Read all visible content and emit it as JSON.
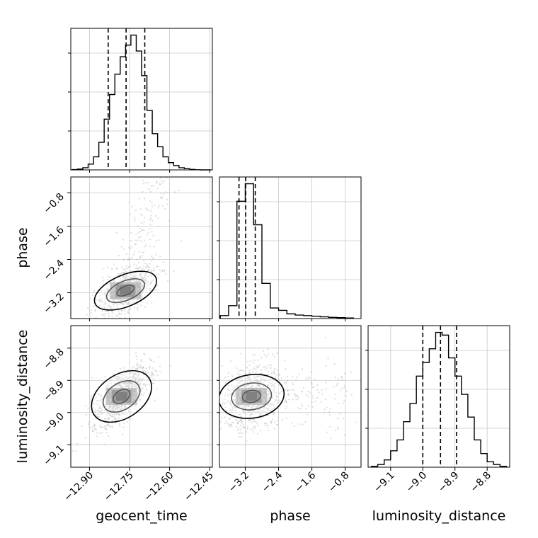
{
  "chart_data": {
    "type": "corner",
    "parameters": [
      "geocent_time",
      "phase",
      "luminosity_distance"
    ],
    "axes": {
      "geocent_time": {
        "range": [
          -12.97,
          -12.44
        ],
        "ticks": [
          -12.9,
          -12.75,
          -12.6,
          -12.45
        ],
        "tick_labels": [
          "−12.90",
          "−12.75",
          "−12.60",
          "−12.45"
        ]
      },
      "phase": {
        "range": [
          -3.82,
          -0.42
        ],
        "ticks": [
          -3.2,
          -2.4,
          -1.6,
          -0.8
        ],
        "tick_labels": [
          "−3.2",
          "−2.4",
          "−1.6",
          "−0.8"
        ]
      },
      "luminosity_distance": {
        "range": [
          -9.17,
          -8.73
        ],
        "ticks": [
          -9.1,
          -9.0,
          -8.9,
          -8.8
        ],
        "tick_labels": [
          "−9.1",
          "−9.0",
          "−8.9",
          "−8.8"
        ]
      }
    },
    "histograms": [
      {
        "param": "geocent_time",
        "bin_edges": [
          -12.965,
          -12.945,
          -12.925,
          -12.905,
          -12.885,
          -12.865,
          -12.845,
          -12.825,
          -12.805,
          -12.785,
          -12.765,
          -12.745,
          -12.725,
          -12.705,
          -12.685,
          -12.665,
          -12.645,
          -12.625,
          -12.605,
          -12.585,
          -12.565,
          -12.545,
          -12.525,
          -12.505,
          -12.485,
          -12.465,
          -12.445
        ],
        "counts": [
          0.2,
          0.6,
          1.5,
          4,
          9,
          19,
          35,
          52,
          66,
          78,
          86,
          93,
          82,
          65,
          41,
          25,
          16,
          9,
          5,
          3,
          1.5,
          0.8,
          0.3,
          0.1,
          0,
          0
        ],
        "quantiles": [
          -12.83,
          -12.763,
          -12.693
        ]
      },
      {
        "param": "phase",
        "bin_edges": [
          -3.8,
          -3.6,
          -3.4,
          -3.2,
          -3.0,
          -2.8,
          -2.6,
          -2.4,
          -2.2,
          -2.0,
          -1.8,
          -1.6,
          -1.4,
          -1.2,
          -1.0,
          -0.8,
          -0.6
        ],
        "counts": [
          5,
          22,
          200,
          230,
          160,
          60,
          18,
          14,
          8,
          6,
          5,
          4,
          3,
          2,
          1.5,
          1
        ],
        "quantiles": [
          -3.35,
          -3.19,
          -2.96
        ]
      },
      {
        "param": "luminosity_distance",
        "bin_edges": [
          -9.16,
          -9.14,
          -9.12,
          -9.1,
          -9.08,
          -9.06,
          -9.04,
          -9.02,
          -9.0,
          -8.98,
          -8.96,
          -8.94,
          -8.92,
          -8.9,
          -8.88,
          -8.86,
          -8.84,
          -8.82,
          -8.8,
          -8.78,
          -8.76,
          -8.74
        ],
        "counts": [
          1,
          3,
          8,
          18,
          30,
          50,
          70,
          100,
          115,
          130,
          148,
          145,
          120,
          100,
          80,
          55,
          30,
          15,
          6,
          3,
          1
        ],
        "quantiles": [
          -9.0,
          -8.945,
          -8.895
        ]
      }
    ],
    "joint": [
      {
        "x": "geocent_time",
        "y": "phase",
        "center": [
          -12.765,
          -3.15
        ],
        "spread": [
          0.055,
          0.28
        ],
        "rho": 0.6
      },
      {
        "x": "geocent_time",
        "y": "luminosity_distance",
        "center": [
          -12.78,
          -8.95
        ],
        "spread": [
          0.055,
          0.05
        ],
        "rho": 0.7
      },
      {
        "x": "phase",
        "y": "luminosity_distance",
        "center": [
          -3.05,
          -8.95
        ],
        "spread": [
          0.35,
          0.05
        ],
        "rho": 0.15
      }
    ],
    "grid": true,
    "line_color": "#000000",
    "scatter_color": "#9a9a9a"
  }
}
